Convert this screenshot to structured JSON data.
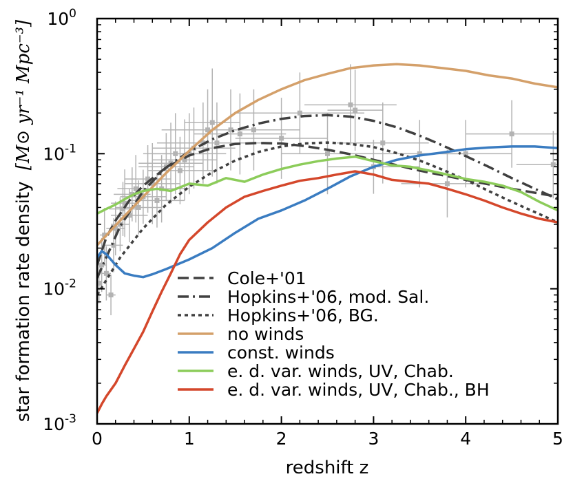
{
  "chart_data": {
    "type": "line",
    "xlabel": "redshift z",
    "ylabel_text": "star formation rate density",
    "ylabel_unit": "[M⊙ yr⁻¹ Mpc⁻³]",
    "yscale": "log",
    "xlim": [
      0,
      5
    ],
    "ylim": [
      0.001,
      1
    ],
    "xticks": [
      0,
      1,
      2,
      3,
      4,
      5
    ],
    "xtick_labels": [
      "0",
      "1",
      "2",
      "3",
      "4",
      "5"
    ],
    "yticks": [
      0.001,
      0.01,
      0.1,
      1
    ],
    "ytick_labels": [
      {
        "base": "10",
        "exp": "-3"
      },
      {
        "base": "10",
        "exp": "-2"
      },
      {
        "base": "10",
        "exp": "-1"
      },
      {
        "base": "10",
        "exp": "0"
      }
    ],
    "legend_position": "bottom-center",
    "series": [
      {
        "name": "Cole+'01",
        "color": "#404040",
        "dash": "dashed",
        "x": [
          0,
          0.1,
          0.2,
          0.35,
          0.5,
          0.75,
          1.0,
          1.25,
          1.5,
          1.75,
          2.0,
          2.25,
          2.5,
          2.75,
          3.0,
          3.5,
          4.0,
          4.5,
          5.0
        ],
        "y": [
          0.015,
          0.024,
          0.032,
          0.045,
          0.058,
          0.079,
          0.097,
          0.11,
          0.118,
          0.12,
          0.119,
          0.114,
          0.107,
          0.099,
          0.09,
          0.075,
          0.064,
          0.055,
          0.048
        ]
      },
      {
        "name": "Hopkins+'06, mod. Sal.",
        "color": "#404040",
        "dash": "dashdot",
        "x": [
          0,
          0.25,
          0.5,
          0.75,
          1.0,
          1.25,
          1.5,
          1.75,
          2.0,
          2.25,
          2.5,
          2.75,
          3.0,
          3.25,
          3.5,
          3.75,
          4.0,
          4.25,
          4.5,
          4.75,
          5.0
        ],
        "y": [
          0.012,
          0.029,
          0.053,
          0.079,
          0.104,
          0.128,
          0.149,
          0.167,
          0.181,
          0.19,
          0.193,
          0.188,
          0.175,
          0.157,
          0.136,
          0.115,
          0.096,
          0.08,
          0.066,
          0.055,
          0.046
        ]
      },
      {
        "name": "Hopkins+'06, BG.",
        "color": "#404040",
        "dash": "dotted",
        "x": [
          0,
          0.25,
          0.5,
          0.75,
          1.0,
          1.25,
          1.5,
          1.75,
          2.0,
          2.25,
          2.5,
          2.75,
          3.0,
          3.25,
          3.5,
          3.75,
          4.0,
          4.25,
          4.5,
          4.75,
          5.0
        ],
        "y": [
          0.009,
          0.017,
          0.028,
          0.042,
          0.057,
          0.073,
          0.089,
          0.103,
          0.113,
          0.119,
          0.121,
          0.118,
          0.112,
          0.101,
          0.089,
          0.076,
          0.064,
          0.053,
          0.044,
          0.037,
          0.031
        ]
      },
      {
        "name": "no winds",
        "color": "#d4a06a",
        "dash": "solid",
        "x": [
          0,
          0.25,
          0.5,
          0.75,
          1.0,
          1.25,
          1.5,
          1.75,
          2.0,
          2.25,
          2.5,
          2.75,
          3.0,
          3.25,
          3.5,
          3.75,
          4.0,
          4.25,
          4.5,
          4.75,
          5.0
        ],
        "y": [
          0.021,
          0.032,
          0.048,
          0.072,
          0.105,
          0.15,
          0.2,
          0.25,
          0.3,
          0.35,
          0.39,
          0.43,
          0.45,
          0.46,
          0.45,
          0.43,
          0.41,
          0.38,
          0.36,
          0.33,
          0.31
        ]
      },
      {
        "name": "const. winds",
        "color": "#3a7cc1",
        "dash": "solid",
        "x": [
          0,
          0.05,
          0.1,
          0.2,
          0.3,
          0.4,
          0.5,
          0.6,
          0.75,
          1.0,
          1.25,
          1.5,
          1.75,
          2.0,
          2.25,
          2.5,
          2.75,
          3.0,
          3.25,
          3.5,
          3.75,
          4.0,
          4.25,
          4.5,
          4.75,
          5.0
        ],
        "y": [
          0.017,
          0.019,
          0.018,
          0.015,
          0.013,
          0.0125,
          0.0122,
          0.0128,
          0.014,
          0.0165,
          0.02,
          0.026,
          0.033,
          0.038,
          0.045,
          0.055,
          0.068,
          0.08,
          0.09,
          0.097,
          0.102,
          0.108,
          0.111,
          0.113,
          0.113,
          0.11
        ]
      },
      {
        "name": "e. d. var. winds, UV, Chab.",
        "color": "#8ccc5a",
        "dash": "solid",
        "x": [
          0,
          0.1,
          0.2,
          0.3,
          0.4,
          0.5,
          0.65,
          0.8,
          1.0,
          1.2,
          1.4,
          1.6,
          1.8,
          2.0,
          2.2,
          2.4,
          2.6,
          2.8,
          3.0,
          3.2,
          3.4,
          3.6,
          3.8,
          4.0,
          4.2,
          4.4,
          4.6,
          4.8,
          5.0
        ],
        "y": [
          0.036,
          0.039,
          0.042,
          0.046,
          0.05,
          0.053,
          0.055,
          0.053,
          0.06,
          0.058,
          0.066,
          0.062,
          0.07,
          0.077,
          0.083,
          0.088,
          0.092,
          0.095,
          0.088,
          0.082,
          0.08,
          0.075,
          0.07,
          0.065,
          0.062,
          0.058,
          0.052,
          0.044,
          0.038
        ]
      },
      {
        "name": "e. d. var. winds, UV, Chab., BH",
        "color": "#d4472b",
        "dash": "solid",
        "x": [
          0,
          0.05,
          0.1,
          0.2,
          0.3,
          0.4,
          0.5,
          0.6,
          0.7,
          0.8,
          0.9,
          1.0,
          1.2,
          1.4,
          1.6,
          1.8,
          2.0,
          2.2,
          2.4,
          2.6,
          2.8,
          3.0,
          3.2,
          3.4,
          3.6,
          3.8,
          4.0,
          4.2,
          4.4,
          4.6,
          4.8,
          5.0
        ],
        "y": [
          0.0012,
          0.0014,
          0.0016,
          0.002,
          0.0027,
          0.0036,
          0.0048,
          0.0068,
          0.0095,
          0.013,
          0.018,
          0.023,
          0.031,
          0.04,
          0.048,
          0.053,
          0.058,
          0.063,
          0.066,
          0.07,
          0.074,
          0.07,
          0.064,
          0.062,
          0.06,
          0.055,
          0.05,
          0.045,
          0.04,
          0.036,
          0.033,
          0.031
        ]
      }
    ],
    "observations": {
      "name": "observational data points",
      "color": "#b3b3b3",
      "x": [
        0.02,
        0.05,
        0.08,
        0.1,
        0.15,
        0.18,
        0.2,
        0.25,
        0.28,
        0.3,
        0.35,
        0.38,
        0.42,
        0.45,
        0.5,
        0.55,
        0.6,
        0.65,
        0.7,
        0.75,
        0.8,
        0.85,
        0.9,
        0.95,
        1.0,
        1.05,
        1.15,
        1.2,
        1.25,
        1.3,
        1.45,
        1.55,
        1.7,
        2.0,
        2.2,
        2.5,
        2.75,
        2.8,
        3.0,
        3.1,
        3.5,
        3.8,
        4.0,
        4.5,
        4.95
      ],
      "y": [
        0.011,
        0.015,
        0.025,
        0.013,
        0.009,
        0.021,
        0.028,
        0.03,
        0.039,
        0.043,
        0.035,
        0.05,
        0.055,
        0.04,
        0.048,
        0.065,
        0.06,
        0.045,
        0.055,
        0.08,
        0.085,
        0.1,
        0.075,
        0.09,
        0.1,
        0.11,
        0.12,
        0.15,
        0.17,
        0.12,
        0.15,
        0.14,
        0.15,
        0.13,
        0.2,
        0.1,
        0.23,
        0.21,
        0.08,
        0.12,
        0.1,
        0.06,
        0.1,
        0.14,
        0.083
      ],
      "xerr": [
        0.02,
        0.05,
        0.05,
        0.05,
        0.05,
        0.1,
        0.1,
        0.1,
        0.15,
        0.15,
        0.2,
        0.2,
        0.2,
        0.25,
        0.25,
        0.25,
        0.3,
        0.3,
        0.3,
        0.3,
        0.35,
        0.35,
        0.35,
        0.35,
        0.4,
        0.45,
        0.5,
        0.5,
        0.3,
        0.5,
        0.5,
        0.5,
        0.5,
        0.5,
        0.7,
        0.5,
        0.5,
        0.3,
        0.5,
        0.5,
        0.5,
        0.5,
        0.5,
        0.5,
        0.4
      ],
      "yerr_dex": [
        0.15,
        0.2,
        0.2,
        0.2,
        0.15,
        0.2,
        0.2,
        0.2,
        0.2,
        0.25,
        0.2,
        0.2,
        0.25,
        0.2,
        0.2,
        0.25,
        0.3,
        0.2,
        0.25,
        0.25,
        0.3,
        0.3,
        0.25,
        0.3,
        0.3,
        0.3,
        0.3,
        0.3,
        0.4,
        0.3,
        0.3,
        0.3,
        0.3,
        0.3,
        0.3,
        0.3,
        0.3,
        0.3,
        0.2,
        0.3,
        0.25,
        0.25,
        0.25,
        0.25,
        0.25
      ]
    }
  }
}
